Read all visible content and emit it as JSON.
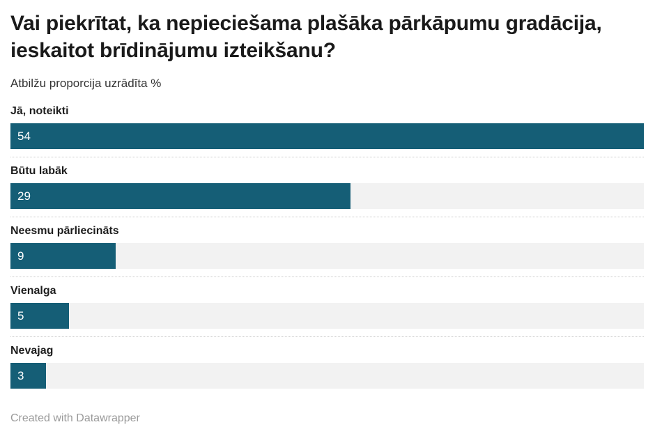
{
  "header": {
    "title": "Vai piekrītat, ka nepieciešama plašāka pārkāpumu gradācija, ieskaitot brīdinājumu izteikšanu?",
    "subtitle": "Atbilžu proporcija uzrādīta %"
  },
  "chart_data": {
    "type": "bar",
    "orientation": "horizontal",
    "title": "Vai piekrītat, ka nepieciešama plašāka pārkāpumu gradācija, ieskaitot brīdinājumu izteikšanu?",
    "subtitle": "Atbilžu proporcija uzrādīta %",
    "categories": [
      "Jā, noteikti",
      "Būtu labāk",
      "Neesmu pārliecināts",
      "Vienalga",
      "Nevajag"
    ],
    "values": [
      54,
      29,
      9,
      5,
      3
    ],
    "value_unit": "%",
    "xlim": [
      0,
      54
    ],
    "grid": false,
    "legend": false,
    "value_label_position": "inside-left",
    "category_label_position": "above-bar"
  },
  "footer": {
    "credit": "Created with Datawrapper"
  },
  "colors": {
    "bar": "#155e76",
    "track": "#f2f2f2",
    "separator": "#cccccc",
    "title_text": "#1a1a1a",
    "subtitle_text": "#333333",
    "label_text": "#1d1d1d",
    "value_text": "#ffffff",
    "footer_text": "#9a9a9a"
  }
}
